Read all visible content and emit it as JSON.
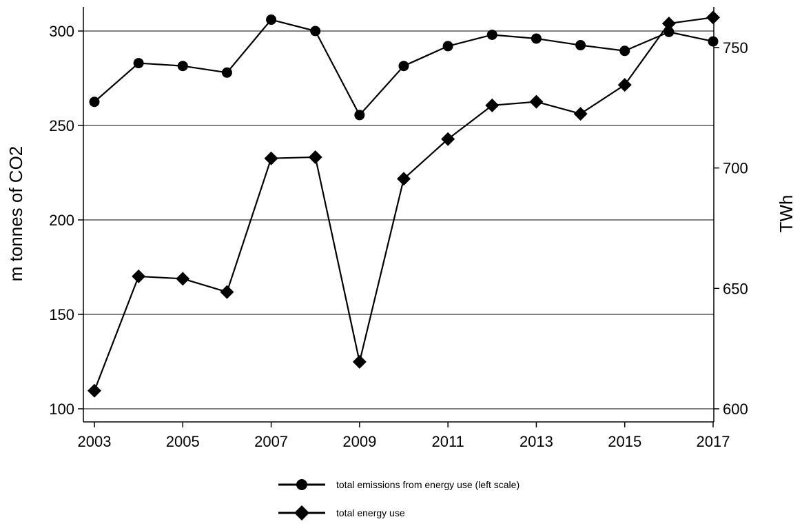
{
  "chart_data": {
    "type": "line",
    "title": "",
    "x": [
      2003,
      2004,
      2005,
      2006,
      2007,
      2008,
      2009,
      2010,
      2011,
      2012,
      2013,
      2014,
      2015,
      2016,
      2017
    ],
    "x_ticks": [
      "2003",
      "2005",
      "2007",
      "2009",
      "2011",
      "2013",
      "2015",
      "2017"
    ],
    "ylabel_left": "m tonnes of CO2",
    "ylabel_right": "TWh",
    "ylim_left": [
      100,
      300
    ],
    "ylim_right": [
      600,
      750
    ],
    "yticks_left": [
      "100",
      "150",
      "200",
      "250",
      "300"
    ],
    "yticks_right": [
      "600",
      "650",
      "700",
      "750"
    ],
    "grid": "horizontal",
    "legend_position": "bottom",
    "series": [
      {
        "name": "total emissions from energy use (left scale)",
        "axis": "left",
        "marker": "circle",
        "values": [
          262.5,
          283,
          281.5,
          278,
          306,
          300,
          255.5,
          281.5,
          292,
          298,
          296,
          292.5,
          289.5,
          299.5,
          294.5
        ]
      },
      {
        "name": "total energy use",
        "axis": "right",
        "marker": "diamond",
        "values": [
          607.5,
          655,
          654,
          648.5,
          704,
          704.5,
          619.5,
          695.5,
          712,
          726,
          727.5,
          722.5,
          734.5,
          760,
          762.5
        ]
      }
    ],
    "colors": {
      "line": "#000000",
      "grid": "#000000"
    }
  }
}
